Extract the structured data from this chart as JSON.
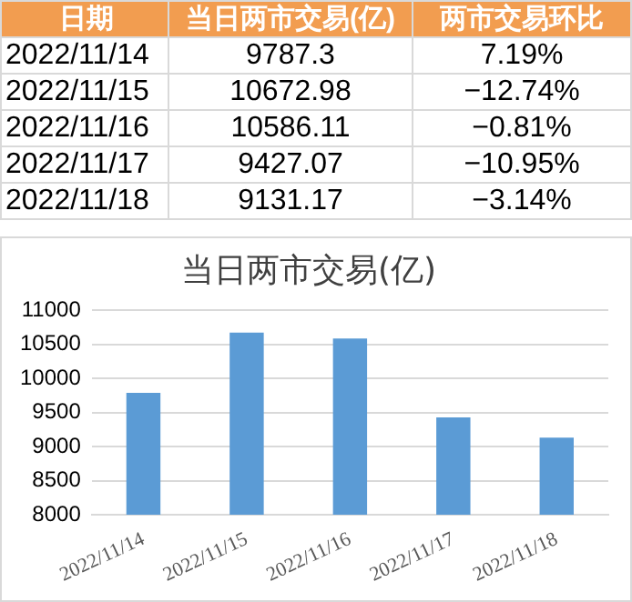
{
  "chart_data": [
    {
      "type": "other",
      "annotations": [
        "日期",
        "当日两市交易(亿)",
        "两市交易环比",
        "2022/11/14",
        "9787.3",
        "7.19%",
        "2022/11/15",
        "10672.98",
        "−12.74%",
        "2022/11/16",
        "10586.11",
        "−0.81%",
        "2022/11/17",
        "9427.07",
        "−10.95%",
        "2022/11/18",
        "9131.17",
        "−3.14%"
      ]
    },
    {
      "type": "bar",
      "title": "当日两市交易(亿)",
      "categories": [
        "2022/11/14",
        "2022/11/15",
        "2022/11/16",
        "2022/11/17",
        "2022/11/18"
      ],
      "values": [
        9787.3,
        10672.98,
        10586.11,
        9427.07,
        9131.17
      ],
      "color": "#5b9bd5",
      "ylim": [
        8000,
        11000
      ],
      "yticks": [
        8000,
        8500,
        9000,
        9500,
        10000,
        10500,
        11000
      ],
      "grid": "y",
      "legend": false
    }
  ]
}
